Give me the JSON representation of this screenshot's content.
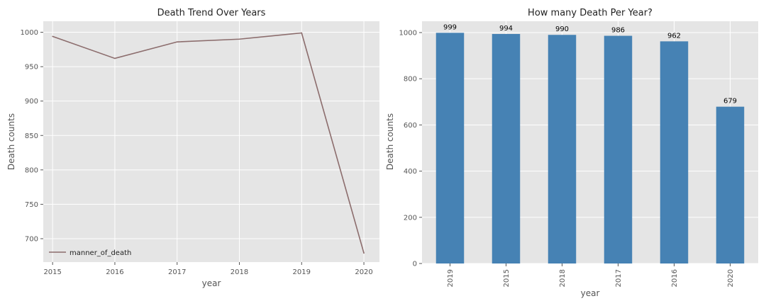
{
  "chart_data": [
    {
      "type": "line",
      "title": "Death Trend Over Years",
      "xlabel": "year",
      "ylabel": "Death counts",
      "x": [
        2015,
        2016,
        2017,
        2018,
        2019,
        2020
      ],
      "xticks": [
        "2015",
        "2016",
        "2017",
        "2018",
        "2019",
        "2020"
      ],
      "series": [
        {
          "name": "manner_of_death",
          "values": [
            994,
            962,
            986,
            990,
            999,
            679
          ]
        }
      ],
      "ylim": [
        666,
        1016
      ],
      "yticks": [
        700,
        750,
        800,
        850,
        900,
        950,
        1000
      ],
      "xlim": [
        2014.85,
        2020.25
      ],
      "grid": true,
      "legend_position": "lower-left",
      "line_color": "#8c6d6d"
    },
    {
      "type": "bar",
      "title": "How many Death Per Year?",
      "xlabel": "year",
      "ylabel": "Death counts",
      "categories": [
        "2019",
        "2015",
        "2018",
        "2017",
        "2016",
        "2020"
      ],
      "values": [
        999,
        994,
        990,
        986,
        962,
        679
      ],
      "data_labels": [
        "999",
        "994",
        "990",
        "986",
        "962",
        "679"
      ],
      "ylim": [
        0,
        1049
      ],
      "yticks": [
        0,
        200,
        400,
        600,
        800,
        1000
      ],
      "grid": true,
      "bar_color": "#4682b4"
    }
  ],
  "style": {
    "axes_background": "#e5e5e5",
    "grid_color": "#ffffff"
  }
}
